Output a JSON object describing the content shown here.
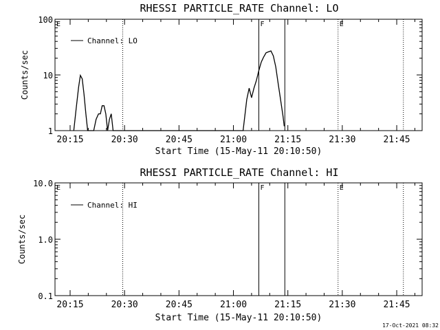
{
  "timestamp": "17-Oct-2021 08:32",
  "chart_data": [
    {
      "type": "line",
      "title": "RHESSI PARTICLE_RATE Channel: LO",
      "xlabel": "Start Time (15-May-11 20:10:50)",
      "ylabel": "Counts/sec",
      "yscale": "log",
      "ylim": [
        1,
        100
      ],
      "yticks": [
        "1",
        "10",
        "100"
      ],
      "xlim": [
        "20:10:50",
        "21:52:00"
      ],
      "xticks": [
        "20:15",
        "20:30",
        "20:45",
        "21:00",
        "21:15",
        "21:30",
        "21:45"
      ],
      "legend": "Channel: LO",
      "legend_position": "top-left",
      "series": [
        {
          "name": "Channel: LO",
          "points": [
            [
              "20:16:00",
              1.0
            ],
            [
              "20:16:40",
              2.5
            ],
            [
              "20:17:20",
              6.0
            ],
            [
              "20:17:50",
              9.8
            ],
            [
              "20:18:20",
              8.5
            ],
            [
              "20:18:50",
              4.5
            ],
            [
              "20:19:20",
              2.0
            ],
            [
              "20:19:50",
              1.0
            ],
            [
              "20:21:30",
              1.0
            ],
            [
              "20:22:10",
              1.6
            ],
            [
              "20:22:50",
              2.0
            ],
            [
              "20:23:20",
              2.0
            ],
            [
              "20:23:50",
              2.8
            ],
            [
              "20:24:20",
              2.8
            ],
            [
              "20:24:50",
              2.0
            ],
            [
              "20:25:20",
              1.0
            ],
            [
              "20:25:50",
              1.6
            ],
            [
              "20:26:20",
              2.0
            ],
            [
              "20:26:50",
              1.0
            ],
            [
              "21:02:40",
              1.0
            ],
            [
              "21:03:40",
              3.6
            ],
            [
              "21:04:20",
              5.8
            ],
            [
              "21:05:00",
              3.9
            ],
            [
              "21:05:40",
              5.8
            ],
            [
              "21:06:20",
              8.0
            ],
            [
              "21:07:00",
              12.0
            ],
            [
              "21:07:40",
              17.0
            ],
            [
              "21:08:20",
              21.0
            ],
            [
              "21:09:00",
              25.0
            ],
            [
              "21:09:40",
              26.0
            ],
            [
              "21:10:20",
              27.0
            ],
            [
              "21:11:00",
              22.0
            ],
            [
              "21:11:40",
              14.0
            ],
            [
              "21:12:20",
              7.0
            ],
            [
              "21:13:00",
              3.6
            ],
            [
              "21:13:40",
              1.8
            ],
            [
              "21:14:00",
              1.2
            ]
          ]
        }
      ]
    },
    {
      "type": "line",
      "title": "RHESSI PARTICLE_RATE Channel: HI",
      "xlabel": "Start Time (15-May-11 20:10:50)",
      "ylabel": "Counts/sec",
      "yscale": "log",
      "ylim": [
        0.1,
        10
      ],
      "yticks": [
        "0.1",
        "1.0",
        "10.0"
      ],
      "xlim": [
        "20:10:50",
        "21:52:00"
      ],
      "xticks": [
        "20:15",
        "20:30",
        "20:45",
        "21:00",
        "21:15",
        "21:30",
        "21:45"
      ],
      "legend": "Channel: HI",
      "legend_position": "top-left",
      "series": [
        {
          "name": "Channel: HI",
          "points": []
        }
      ]
    }
  ],
  "markers": {
    "dotted": [
      {
        "time": "20:29:30",
        "label": ""
      },
      {
        "time": "21:28:50",
        "label": "E"
      },
      {
        "time": "21:46:50",
        "label": ""
      }
    ],
    "solid": [
      {
        "time": "21:07:00",
        "label": "F"
      },
      {
        "time": "21:14:10",
        "label": ""
      }
    ],
    "edge_label": "E"
  }
}
